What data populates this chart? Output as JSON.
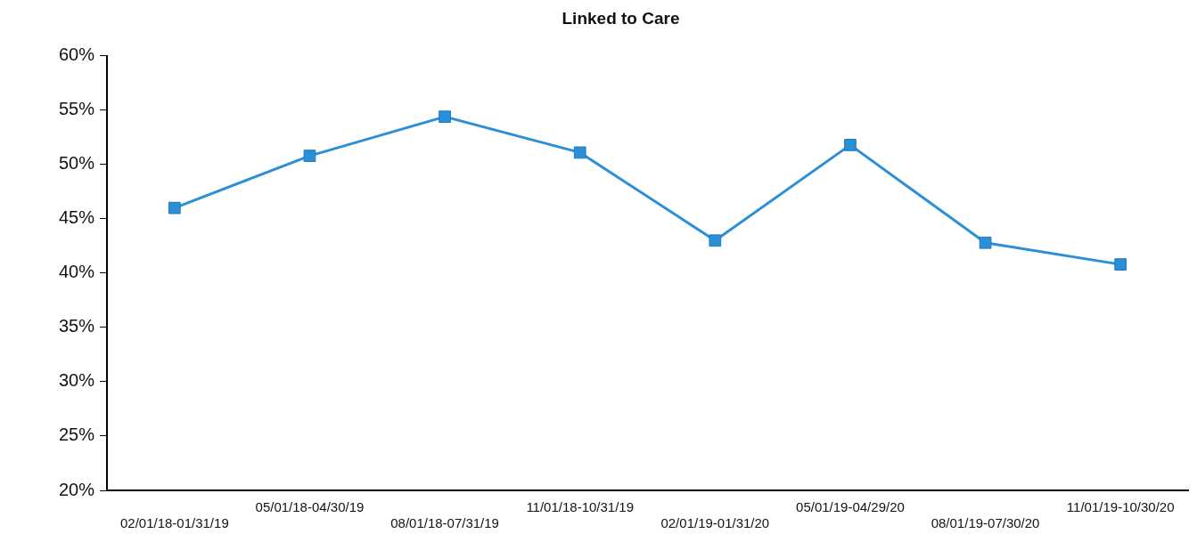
{
  "chart_data": {
    "type": "line",
    "title": "Linked to Care",
    "categories": [
      "02/01/18-01/31/19",
      "05/01/18-04/30/19",
      "08/01/18-07/31/19",
      "11/01/18-10/31/19",
      "02/01/19-01/31/20",
      "05/01/19-04/29/20",
      "08/01/19-07/30/20",
      "11/01/19-10/30/20"
    ],
    "series": [
      {
        "color": "#2a8fd6",
        "values": [
          46.0,
          50.8,
          54.4,
          51.1,
          43.0,
          51.8,
          42.8,
          40.8
        ]
      }
    ],
    "ylim": [
      20,
      60
    ],
    "yticks": [
      {
        "value": 20,
        "label": "20%"
      },
      {
        "value": 25,
        "label": "25%"
      },
      {
        "value": 30,
        "label": "30%"
      },
      {
        "value": 35,
        "label": "35%"
      },
      {
        "value": 40,
        "label": "40%"
      },
      {
        "value": 45,
        "label": "45%"
      },
      {
        "value": 50,
        "label": "50%"
      },
      {
        "value": 55,
        "label": "55%"
      },
      {
        "value": 60,
        "label": "60%"
      }
    ],
    "grid": false,
    "legend": false,
    "marker": "square",
    "line_style": "solid"
  }
}
